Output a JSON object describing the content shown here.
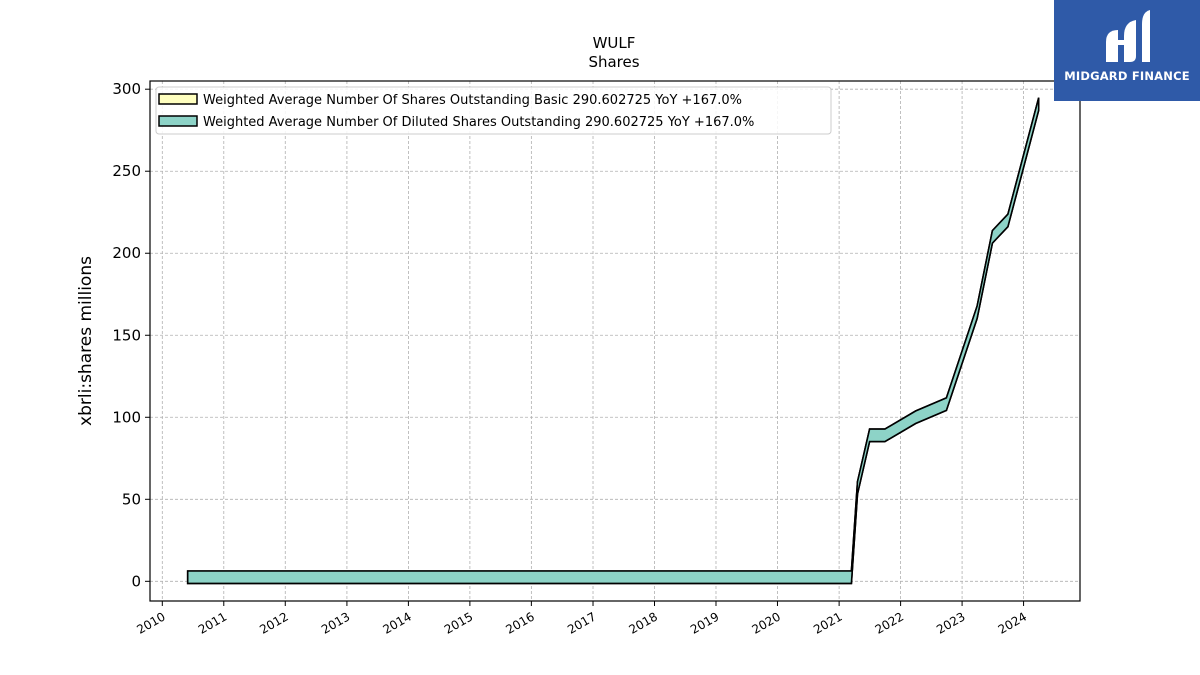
{
  "logo": {
    "text": "MIDGARD FINANCE",
    "bg_color": "#2f5aa8"
  },
  "chart_data": {
    "type": "area",
    "title": "WULF",
    "subtitle": "Shares",
    "xlabel": "",
    "ylabel": "xbrli:shares millions",
    "ylim": [
      -12,
      305
    ],
    "yticks": [
      0,
      50,
      100,
      150,
      200,
      250,
      300
    ],
    "xlim": [
      "2009-10-20",
      "2024-12-01"
    ],
    "xticks": [
      "2010",
      "2011",
      "2012",
      "2013",
      "2014",
      "2015",
      "2016",
      "2017",
      "2018",
      "2019",
      "2020",
      "2021",
      "2022",
      "2023",
      "2024"
    ],
    "grid": true,
    "legend_position": "top-left",
    "series": [
      {
        "name": "Weighted Average Number Of Shares Outstanding Basic  290.602725 YoY +167.0%",
        "color": "#ffffbf",
        "x": [
          "2010-06-01",
          "2021-03-15",
          "2021-04-20",
          "2021-07-01",
          "2021-09-30",
          "2022-03-31",
          "2022-09-30",
          "2023-03-31",
          "2023-06-30",
          "2023-09-30",
          "2024-03-31"
        ],
        "y": [
          2.5,
          2.5,
          57,
          89,
          89,
          100,
          108,
          164,
          210,
          220,
          291
        ]
      },
      {
        "name": "Weighted Average Number Of Diluted Shares Outstanding  290.602725 YoY +167.0%",
        "color": "#8dd3c7",
        "x": [
          "2010-06-01",
          "2021-03-15",
          "2021-04-20",
          "2021-07-01",
          "2021-09-30",
          "2022-03-31",
          "2022-09-30",
          "2023-03-31",
          "2023-06-30",
          "2023-09-30",
          "2024-03-31"
        ],
        "y": [
          2.5,
          2.5,
          57,
          89,
          89,
          100,
          108,
          164,
          210,
          220,
          291
        ]
      }
    ]
  }
}
